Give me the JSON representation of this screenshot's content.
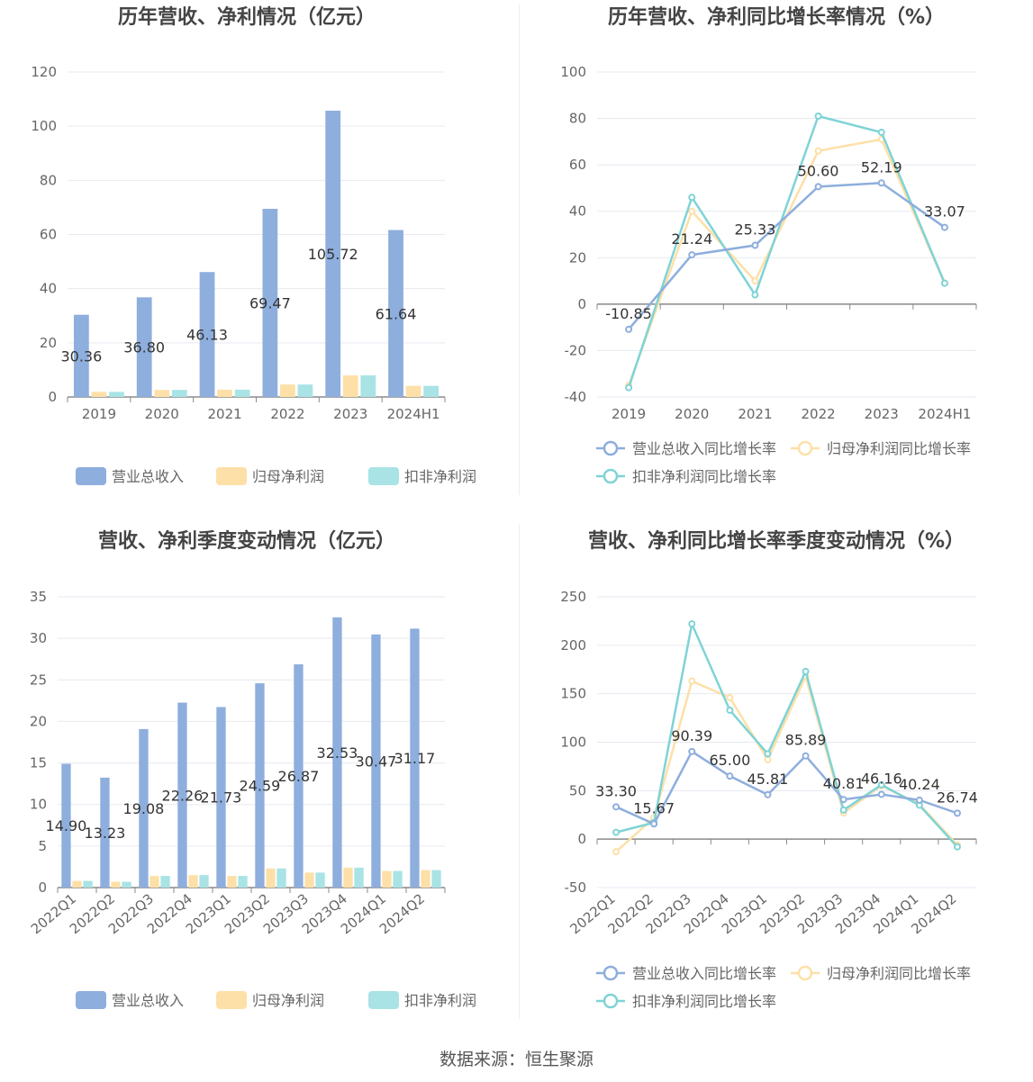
{
  "colors": {
    "revenue": "#8eaedd",
    "net_profit": "#fde0a8",
    "deducted_profit": "#7fd3d6",
    "grid": "#e6e9f0",
    "axis_text": "#666666",
    "title": "#444444",
    "label": "#333333"
  },
  "footer": "数据来源：恒生聚源",
  "chart_data": [
    {
      "id": "annual-values",
      "type": "bar",
      "title": "历年营收、净利情况（亿元）",
      "categories": [
        "2019",
        "2020",
        "2021",
        "2022",
        "2023",
        "2024H1"
      ],
      "ylim": [
        0,
        120
      ],
      "yticks": [
        0,
        20,
        40,
        60,
        80,
        100,
        120
      ],
      "series": [
        {
          "name": "营业总收入",
          "color": "#8eaedd",
          "values": [
            30.36,
            36.8,
            46.13,
            69.47,
            105.72,
            61.64
          ],
          "labels": [
            "30.36",
            "36.80",
            "46.13",
            "69.47",
            "105.72",
            "61.64"
          ]
        },
        {
          "name": "归母净利润",
          "color": "#fde0a8",
          "values": [
            1.9,
            2.6,
            2.7,
            4.6,
            8.0,
            4.1
          ]
        },
        {
          "name": "扣非净利润",
          "color": "#a9e3e5",
          "values": [
            1.9,
            2.6,
            2.7,
            4.6,
            8.0,
            4.1
          ]
        }
      ],
      "legend": "bottom",
      "grid": true
    },
    {
      "id": "annual-growth",
      "type": "line",
      "title": "历年营收、净利同比增长率情况（%）",
      "categories": [
        "2019",
        "2020",
        "2021",
        "2022",
        "2023",
        "2024H1"
      ],
      "ylim": [
        -40,
        100
      ],
      "yticks": [
        -40,
        -20,
        0,
        20,
        40,
        60,
        80,
        100
      ],
      "series": [
        {
          "name": "营业总收入同比增长率",
          "color": "#8eaedd",
          "values": [
            -10.85,
            21.24,
            25.33,
            50.6,
            52.19,
            33.07
          ],
          "labels": [
            "-10.85",
            "21.24",
            "25.33",
            "50.60",
            "52.19",
            "33.07"
          ]
        },
        {
          "name": "归母净利润同比增长率",
          "color": "#fde0a8",
          "values": [
            -35,
            40,
            10,
            66,
            71,
            9
          ]
        },
        {
          "name": "扣非净利润同比增长率",
          "color": "#7fd3d6",
          "values": [
            -36,
            46,
            4,
            81,
            74,
            9
          ]
        }
      ],
      "legend": "bottom",
      "grid": true
    },
    {
      "id": "quarterly-values",
      "type": "bar",
      "title": "营收、净利季度变动情况（亿元）",
      "categories": [
        "2022Q1",
        "2022Q2",
        "2022Q3",
        "2022Q4",
        "2023Q1",
        "2023Q2",
        "2023Q3",
        "2023Q4",
        "2024Q1",
        "2024Q2"
      ],
      "ylim": [
        0,
        35
      ],
      "yticks": [
        0,
        5,
        10,
        15,
        20,
        25,
        30,
        35
      ],
      "series": [
        {
          "name": "营业总收入",
          "color": "#8eaedd",
          "values": [
            14.9,
            13.23,
            19.08,
            22.26,
            21.73,
            24.59,
            26.87,
            32.53,
            30.47,
            31.17
          ],
          "labels": [
            "14.90",
            "13.23",
            "19.08",
            "22.26",
            "21.73",
            "24.59",
            "26.87",
            "32.53",
            "30.47",
            "31.17"
          ]
        },
        {
          "name": "归母净利润",
          "color": "#fde0a8",
          "values": [
            0.8,
            0.7,
            1.4,
            1.5,
            1.4,
            2.3,
            1.8,
            2.4,
            2.0,
            2.1
          ]
        },
        {
          "name": "扣非净利润",
          "color": "#a9e3e5",
          "values": [
            0.8,
            0.7,
            1.4,
            1.5,
            1.4,
            2.3,
            1.8,
            2.4,
            2.0,
            2.1
          ]
        }
      ],
      "legend": "bottom",
      "grid": true
    },
    {
      "id": "quarterly-growth",
      "type": "line",
      "title": "营收、净利同比增长率季度变动情况（%）",
      "categories": [
        "2022Q1",
        "2022Q2",
        "2022Q3",
        "2022Q4",
        "2023Q1",
        "2023Q2",
        "2023Q3",
        "2023Q4",
        "2024Q1",
        "2024Q2"
      ],
      "ylim": [
        -50,
        250
      ],
      "yticks": [
        -50,
        0,
        50,
        100,
        150,
        200,
        250
      ],
      "series": [
        {
          "name": "营业总收入同比增长率",
          "color": "#8eaedd",
          "values": [
            33.3,
            15.67,
            90.39,
            65.0,
            45.81,
            85.89,
            40.81,
            46.16,
            40.24,
            26.74
          ],
          "labels": [
            "33.30",
            "15.67",
            "90.39",
            "65.00",
            "45.81",
            "85.89",
            "40.81",
            "46.16",
            "40.24",
            "26.74"
          ]
        },
        {
          "name": "归母净利润同比增长率",
          "color": "#fde0a8",
          "values": [
            -13,
            22,
            163,
            146,
            82,
            168,
            27,
            55,
            36,
            -6
          ]
        },
        {
          "name": "扣非净利润同比增长率",
          "color": "#7fd3d6",
          "values": [
            7,
            17,
            222,
            133,
            88,
            173,
            30,
            56,
            35,
            -8
          ]
        }
      ],
      "legend": "bottom",
      "grid": true
    }
  ]
}
